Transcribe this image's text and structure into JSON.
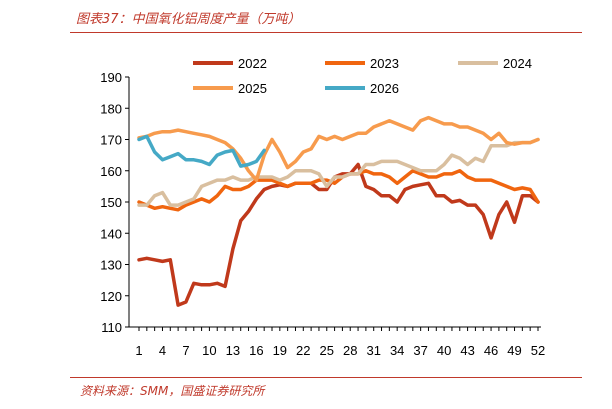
{
  "figure": {
    "title": "图表37：中国氧化铝周度产量（万吨）",
    "source": "资料来源：SMM，国盛证券研究所"
  },
  "colors": {
    "accent": "#c0392b",
    "s2022": "#c0391b",
    "s2023": "#f0650f",
    "s2024": "#d9bf9f",
    "s2025": "#f79b4d",
    "s2026": "#45a9c6"
  },
  "chart_data": {
    "type": "line",
    "title": "图表37：中国氧化铝周度产量（万吨）",
    "xlabel": "",
    "ylabel": "",
    "ylim": [
      110,
      190
    ],
    "xlim": [
      1,
      52
    ],
    "yticks": [
      110,
      120,
      130,
      140,
      150,
      160,
      170,
      180,
      190
    ],
    "xticks": [
      1,
      4,
      7,
      10,
      13,
      16,
      19,
      22,
      25,
      28,
      31,
      34,
      37,
      40,
      43,
      46,
      49,
      52
    ],
    "grid": false,
    "legend": "top",
    "series": [
      {
        "name": "2022",
        "color": "#c0391b",
        "x": [
          1,
          2,
          3,
          4,
          5,
          6,
          7,
          8,
          9,
          10,
          11,
          12,
          13,
          14,
          15,
          16,
          17,
          18,
          19,
          20,
          21,
          22,
          23,
          24,
          25,
          26,
          27,
          28,
          29,
          30,
          31,
          32,
          33,
          34,
          35,
          36,
          37,
          38,
          39,
          40,
          41,
          42,
          43,
          44,
          45,
          46,
          47,
          48,
          49,
          50,
          51,
          52
        ],
        "y": [
          131.5,
          132,
          131.5,
          131,
          131.5,
          117,
          118,
          124,
          123.5,
          123.5,
          124,
          123,
          135,
          144,
          147,
          151,
          154,
          155,
          155.5,
          155,
          156,
          156,
          156,
          154,
          154,
          158,
          159,
          159,
          162,
          155,
          154,
          152,
          152,
          150,
          154,
          155,
          155.5,
          156,
          152,
          152,
          150,
          150.5,
          149,
          149,
          146,
          138.5,
          146,
          150,
          143.5,
          152,
          152,
          150
        ]
      },
      {
        "name": "2023",
        "color": "#f0650f",
        "x": [
          1,
          2,
          3,
          4,
          5,
          6,
          7,
          8,
          9,
          10,
          11,
          12,
          13,
          14,
          15,
          16,
          17,
          18,
          19,
          20,
          21,
          22,
          23,
          24,
          25,
          26,
          27,
          28,
          29,
          30,
          31,
          32,
          33,
          34,
          35,
          36,
          37,
          38,
          39,
          40,
          41,
          42,
          43,
          44,
          45,
          46,
          47,
          48,
          49,
          50,
          51,
          52
        ],
        "y": [
          150,
          149,
          148,
          148.5,
          148,
          147.5,
          149,
          150,
          151,
          150,
          152,
          155,
          154,
          154,
          155,
          157,
          157,
          157,
          156,
          155,
          156,
          156,
          156,
          157,
          157,
          156,
          158,
          159,
          159,
          160,
          159,
          159,
          158,
          156,
          158,
          160,
          159,
          158,
          158,
          159,
          159,
          160,
          158,
          157,
          157,
          157,
          156,
          155,
          154,
          154.5,
          154,
          150
        ]
      },
      {
        "name": "2024",
        "color": "#d9bf9f",
        "x": [
          1,
          2,
          3,
          4,
          5,
          6,
          7,
          8,
          9,
          10,
          11,
          12,
          13,
          14,
          15,
          16,
          17,
          18,
          19,
          20,
          21,
          22,
          23,
          24,
          25,
          26,
          27,
          28,
          29,
          30,
          31,
          32,
          33,
          34,
          35,
          36,
          37,
          38,
          39,
          40,
          41,
          42,
          43,
          44,
          45,
          46,
          47,
          48,
          49,
          50,
          51,
          52
        ],
        "y": [
          149,
          149,
          152,
          153,
          149,
          149,
          150,
          151,
          155,
          156,
          157,
          157,
          158,
          157,
          157,
          158,
          158,
          158,
          157,
          158,
          160,
          160,
          160,
          159,
          155,
          158,
          158,
          159,
          159,
          162,
          162,
          163,
          163,
          163,
          162,
          161,
          160,
          160,
          160,
          162,
          165,
          164,
          162,
          164,
          163,
          168,
          168,
          168,
          169,
          169,
          169,
          170
        ]
      },
      {
        "name": "2025",
        "color": "#f79b4d",
        "x": [
          1,
          2,
          3,
          4,
          5,
          6,
          7,
          8,
          9,
          10,
          11,
          12,
          13,
          14,
          15,
          16,
          17,
          18,
          19,
          20,
          21,
          22,
          23,
          24,
          25,
          26,
          27,
          28,
          29,
          30,
          31,
          32,
          33,
          34,
          35,
          36,
          37,
          38,
          39,
          40,
          41,
          42,
          43,
          44,
          45,
          46,
          47,
          48,
          49,
          50,
          51,
          52
        ],
        "y": [
          170.5,
          171,
          172,
          172.5,
          172.5,
          173,
          172.5,
          172,
          171.5,
          171,
          170,
          169,
          167,
          164,
          160,
          157,
          165,
          170,
          166,
          161,
          163,
          166,
          167,
          171,
          170,
          171,
          170,
          171,
          172,
          172,
          174,
          175,
          176,
          175,
          174,
          173,
          176,
          177,
          176,
          175,
          175,
          174,
          174,
          173,
          172,
          170,
          172,
          169,
          168.5,
          169,
          169,
          170
        ]
      },
      {
        "name": "2026",
        "color": "#45a9c6",
        "x": [
          1,
          2,
          3,
          4,
          5,
          6,
          7,
          8,
          9,
          10,
          11,
          12,
          13,
          14,
          15,
          16,
          17
        ],
        "y": [
          170,
          171,
          166,
          163.5,
          164.5,
          165.5,
          163.5,
          163.5,
          163,
          162,
          165,
          166,
          166.5,
          161.5,
          162,
          163,
          166.5
        ]
      }
    ]
  }
}
